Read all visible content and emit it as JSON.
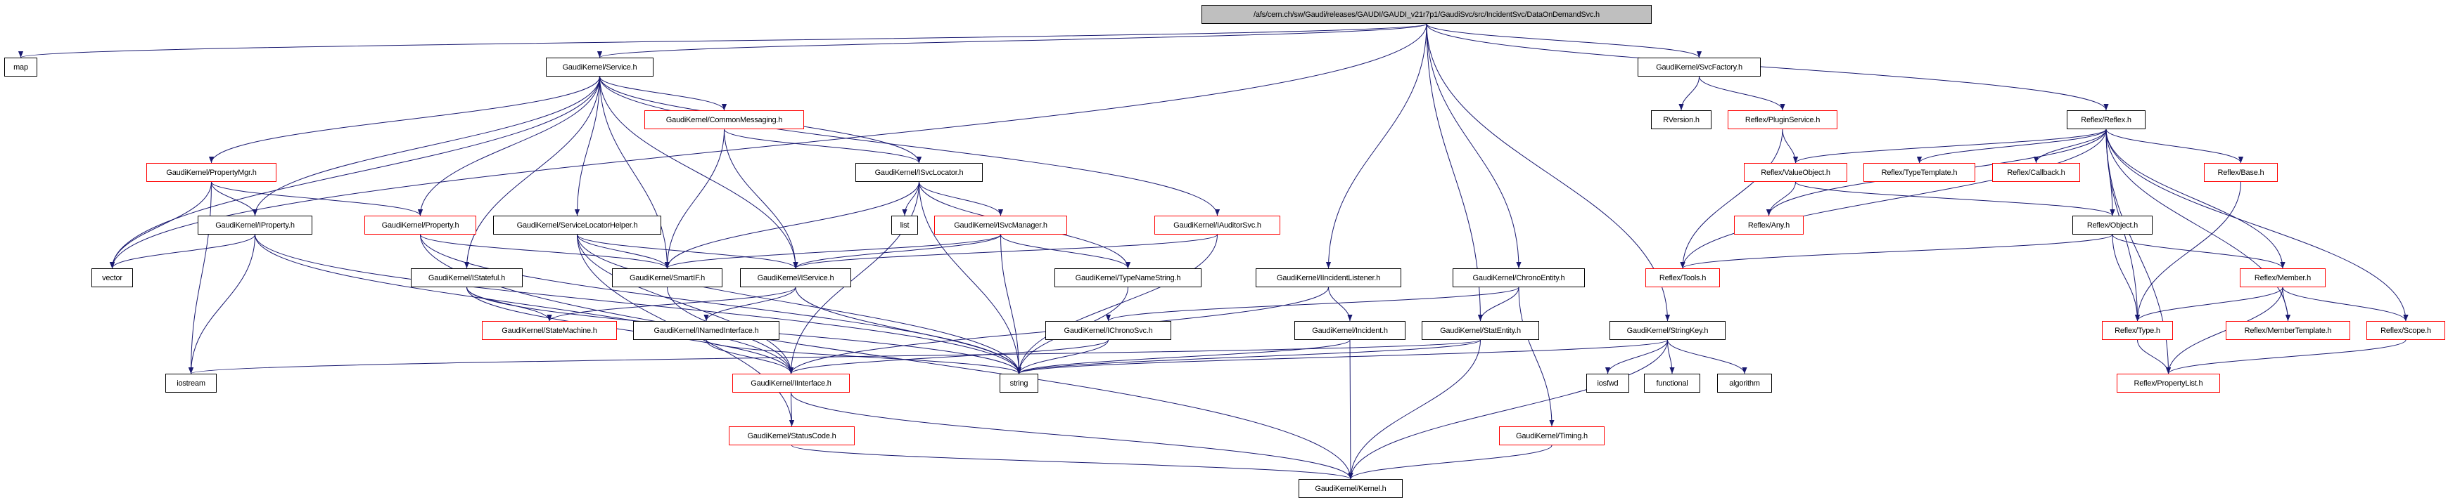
{
  "graph": {
    "edge_color": "#191970",
    "nodes": [
      {
        "id": "root",
        "label": "/afs/cern.ch/sw/Gaudi/releases/GAUDI/GAUDI_v21r7p1/GaudiSvc/src/IncidentSvc/DataOnDemandSvc.h",
        "style": "root"
      },
      {
        "id": "map",
        "label": "map",
        "style": "black"
      },
      {
        "id": "service",
        "label": "GaudiKernel/Service.h",
        "style": "black"
      },
      {
        "id": "svcfactory",
        "label": "GaudiKernel/SvcFactory.h",
        "style": "black"
      },
      {
        "id": "commonmsg",
        "label": "GaudiKernel/CommonMessaging.h",
        "style": "red"
      },
      {
        "id": "rversion",
        "label": "RVersion.h",
        "style": "black"
      },
      {
        "id": "pluginsvc",
        "label": "Reflex/PluginService.h",
        "style": "red"
      },
      {
        "id": "reflex",
        "label": "Reflex/Reflex.h",
        "style": "black"
      },
      {
        "id": "propmgr",
        "label": "GaudiKernel/PropertyMgr.h",
        "style": "red"
      },
      {
        "id": "isvclocator",
        "label": "GaudiKernel/ISvcLocator.h",
        "style": "black"
      },
      {
        "id": "valueobject",
        "label": "Reflex/ValueObject.h",
        "style": "red"
      },
      {
        "id": "typetemplate",
        "label": "Reflex/TypeTemplate.h",
        "style": "red"
      },
      {
        "id": "callback",
        "label": "Reflex/Callback.h",
        "style": "red"
      },
      {
        "id": "base",
        "label": "Reflex/Base.h",
        "style": "red"
      },
      {
        "id": "iproperty",
        "label": "GaudiKernel/IProperty.h",
        "style": "black"
      },
      {
        "id": "property",
        "label": "GaudiKernel/Property.h",
        "style": "red"
      },
      {
        "id": "svclochelper",
        "label": "GaudiKernel/ServiceLocatorHelper.h",
        "style": "black"
      },
      {
        "id": "list",
        "label": "list",
        "style": "black"
      },
      {
        "id": "isvcmanager",
        "label": "GaudiKernel/ISvcManager.h",
        "style": "red"
      },
      {
        "id": "iauditorsvc",
        "label": "GaudiKernel/IAuditorSvc.h",
        "style": "red"
      },
      {
        "id": "any",
        "label": "Reflex/Any.h",
        "style": "red"
      },
      {
        "id": "object",
        "label": "Reflex/Object.h",
        "style": "black"
      },
      {
        "id": "vector",
        "label": "vector",
        "style": "black"
      },
      {
        "id": "istateful",
        "label": "GaudiKernel/IStateful.h",
        "style": "black"
      },
      {
        "id": "smartif",
        "label": "GaudiKernel/SmartIF.h",
        "style": "black"
      },
      {
        "id": "iservice",
        "label": "GaudiKernel/IService.h",
        "style": "black"
      },
      {
        "id": "typenamestring",
        "label": "GaudiKernel/TypeNameString.h",
        "style": "black"
      },
      {
        "id": "iincidentlistener",
        "label": "GaudiKernel/IIncidentListener.h",
        "style": "black"
      },
      {
        "id": "chronoentity",
        "label": "GaudiKernel/ChronoEntity.h",
        "style": "black"
      },
      {
        "id": "tools",
        "label": "Reflex/Tools.h",
        "style": "red"
      },
      {
        "id": "member",
        "label": "Reflex/Member.h",
        "style": "red"
      },
      {
        "id": "statemachine",
        "label": "GaudiKernel/StateMachine.h",
        "style": "red"
      },
      {
        "id": "inamedinterface",
        "label": "GaudiKernel/INamedInterface.h",
        "style": "black"
      },
      {
        "id": "ichronosvc",
        "label": "GaudiKernel/IChronoSvc.h",
        "style": "black"
      },
      {
        "id": "incident",
        "label": "GaudiKernel/Incident.h",
        "style": "black"
      },
      {
        "id": "statentity",
        "label": "GaudiKernel/StatEntity.h",
        "style": "black"
      },
      {
        "id": "stringkey",
        "label": "GaudiKernel/StringKey.h",
        "style": "black"
      },
      {
        "id": "type",
        "label": "Reflex/Type.h",
        "style": "red"
      },
      {
        "id": "membertemplate",
        "label": "Reflex/MemberTemplate.h",
        "style": "red"
      },
      {
        "id": "scope",
        "label": "Reflex/Scope.h",
        "style": "red"
      },
      {
        "id": "iostream",
        "label": "iostream",
        "style": "black"
      },
      {
        "id": "iinterface",
        "label": "GaudiKernel/IInterface.h",
        "style": "red"
      },
      {
        "id": "string",
        "label": "string",
        "style": "black"
      },
      {
        "id": "iosfwd",
        "label": "iosfwd",
        "style": "black"
      },
      {
        "id": "functional",
        "label": "functional",
        "style": "black"
      },
      {
        "id": "algorithm",
        "label": "algorithm",
        "style": "black"
      },
      {
        "id": "propertylist",
        "label": "Reflex/PropertyList.h",
        "style": "red"
      },
      {
        "id": "statuscode",
        "label": "GaudiKernel/StatusCode.h",
        "style": "red"
      },
      {
        "id": "timing",
        "label": "GaudiKernel/Timing.h",
        "style": "red"
      },
      {
        "id": "kernel",
        "label": "GaudiKernel/Kernel.h",
        "style": "black"
      }
    ],
    "edges": [
      [
        "root",
        "map"
      ],
      [
        "root",
        "service"
      ],
      [
        "root",
        "vector"
      ],
      [
        "root",
        "iincidentlistener"
      ],
      [
        "root",
        "statentity"
      ],
      [
        "root",
        "chronoentity"
      ],
      [
        "root",
        "stringkey"
      ],
      [
        "root",
        "svcfactory"
      ],
      [
        "root",
        "reflex"
      ],
      [
        "service",
        "propmgr"
      ],
      [
        "service",
        "iproperty"
      ],
      [
        "service",
        "vector"
      ],
      [
        "service",
        "property"
      ],
      [
        "service",
        "istateful"
      ],
      [
        "service",
        "smartif"
      ],
      [
        "service",
        "svclochelper"
      ],
      [
        "service",
        "commonmsg"
      ],
      [
        "service",
        "iservice"
      ],
      [
        "service",
        "isvclocator"
      ],
      [
        "service",
        "iauditorsvc"
      ],
      [
        "propmgr",
        "vector"
      ],
      [
        "propmgr",
        "iostream"
      ],
      [
        "propmgr",
        "iproperty"
      ],
      [
        "propmgr",
        "property"
      ],
      [
        "iproperty",
        "vector"
      ],
      [
        "iproperty",
        "iostream"
      ],
      [
        "iproperty",
        "string"
      ],
      [
        "iproperty",
        "iinterface"
      ],
      [
        "property",
        "smartif"
      ],
      [
        "property",
        "string"
      ],
      [
        "property",
        "kernel"
      ],
      [
        "svclochelper",
        "smartif"
      ],
      [
        "svclochelper",
        "iservice"
      ],
      [
        "svclochelper",
        "string"
      ],
      [
        "svclochelper",
        "iinterface"
      ],
      [
        "svclochelper",
        "statuscode"
      ],
      [
        "istateful",
        "statemachine"
      ],
      [
        "istateful",
        "iinterface"
      ],
      [
        "istateful",
        "string"
      ],
      [
        "commonmsg",
        "isvclocator"
      ],
      [
        "commonmsg",
        "smartif"
      ],
      [
        "commonmsg",
        "iservice"
      ],
      [
        "isvclocator",
        "list"
      ],
      [
        "isvclocator",
        "isvcmanager"
      ],
      [
        "isvclocator",
        "smartif"
      ],
      [
        "isvclocator",
        "iinterface"
      ],
      [
        "isvclocator",
        "string"
      ],
      [
        "isvclocator",
        "typenamestring"
      ],
      [
        "isvcmanager",
        "iservice"
      ],
      [
        "isvcmanager",
        "smartif"
      ],
      [
        "isvcmanager",
        "string"
      ],
      [
        "isvcmanager",
        "typenamestring"
      ],
      [
        "iauditorsvc",
        "iservice"
      ],
      [
        "iauditorsvc",
        "string"
      ],
      [
        "smartif",
        "iinterface"
      ],
      [
        "iservice",
        "inamedinterface"
      ],
      [
        "iservice",
        "statemachine"
      ],
      [
        "iservice",
        "string"
      ],
      [
        "inamedinterface",
        "iinterface"
      ],
      [
        "inamedinterface",
        "string"
      ],
      [
        "iinterface",
        "statuscode"
      ],
      [
        "iinterface",
        "kernel"
      ],
      [
        "statuscode",
        "kernel"
      ],
      [
        "typenamestring",
        "string"
      ],
      [
        "ichronosvc",
        "iinterface"
      ],
      [
        "ichronosvc",
        "string"
      ],
      [
        "iincidentlistener",
        "iinterface"
      ],
      [
        "iincidentlistener",
        "incident"
      ],
      [
        "incident",
        "string"
      ],
      [
        "incident",
        "kernel"
      ],
      [
        "chronoentity",
        "ichronosvc"
      ],
      [
        "chronoentity",
        "statentity"
      ],
      [
        "chronoentity",
        "timing"
      ],
      [
        "statentity",
        "string"
      ],
      [
        "statentity",
        "kernel"
      ],
      [
        "statentity",
        "iostream"
      ],
      [
        "stringkey",
        "string"
      ],
      [
        "stringkey",
        "iosfwd"
      ],
      [
        "stringkey",
        "functional"
      ],
      [
        "stringkey",
        "algorithm"
      ],
      [
        "stringkey",
        "kernel"
      ],
      [
        "timing",
        "kernel"
      ],
      [
        "svcfactory",
        "rversion"
      ],
      [
        "svcfactory",
        "pluginsvc"
      ],
      [
        "pluginsvc",
        "tools"
      ],
      [
        "pluginsvc",
        "valueobject"
      ],
      [
        "reflex",
        "valueobject"
      ],
      [
        "reflex",
        "any"
      ],
      [
        "reflex",
        "tools"
      ],
      [
        "reflex",
        "typetemplate"
      ],
      [
        "reflex",
        "callback"
      ],
      [
        "reflex",
        "base"
      ],
      [
        "reflex",
        "object"
      ],
      [
        "reflex",
        "type"
      ],
      [
        "reflex",
        "member"
      ],
      [
        "reflex",
        "membertemplate"
      ],
      [
        "reflex",
        "scope"
      ],
      [
        "reflex",
        "propertylist"
      ],
      [
        "valueobject",
        "any"
      ],
      [
        "valueobject",
        "object"
      ],
      [
        "object",
        "tools"
      ],
      [
        "object",
        "type"
      ],
      [
        "object",
        "member"
      ],
      [
        "base",
        "type"
      ],
      [
        "member",
        "type"
      ],
      [
        "member",
        "propertylist"
      ],
      [
        "member",
        "membertemplate"
      ],
      [
        "member",
        "scope"
      ],
      [
        "type",
        "propertylist"
      ],
      [
        "scope",
        "propertylist"
      ]
    ]
  }
}
